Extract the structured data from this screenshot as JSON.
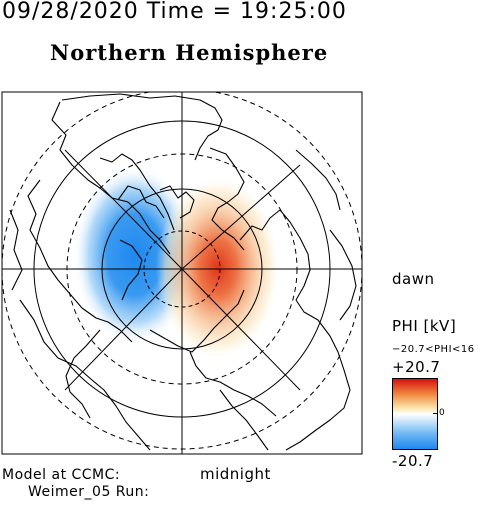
{
  "header": {
    "datetime": "09/28/2020 Time = 19:25:00",
    "title": "Northern Hemisphere"
  },
  "map": {
    "projection": "polar stereographic, north pole centered",
    "potential_pattern": {
      "negative_cell": "dusk side (left), blue",
      "positive_cell": "dawn side (right), red"
    },
    "colors": {
      "negative": "#1e88ee",
      "positive": "#e23b1c",
      "frame": "#000000"
    }
  },
  "labels": {
    "dawn": "dawn",
    "midnight": "midnight",
    "model_line1": "Model at CCMC:",
    "model_line2": "Weimer_05 Run:"
  },
  "colorbar": {
    "title": "PHI [kV]",
    "range_text": "−20.7<PHI<16",
    "max_label": "+20.7",
    "zero_label": "0",
    "min_label": "-20.7",
    "max_value": 20.7,
    "min_value": -20.7
  }
}
